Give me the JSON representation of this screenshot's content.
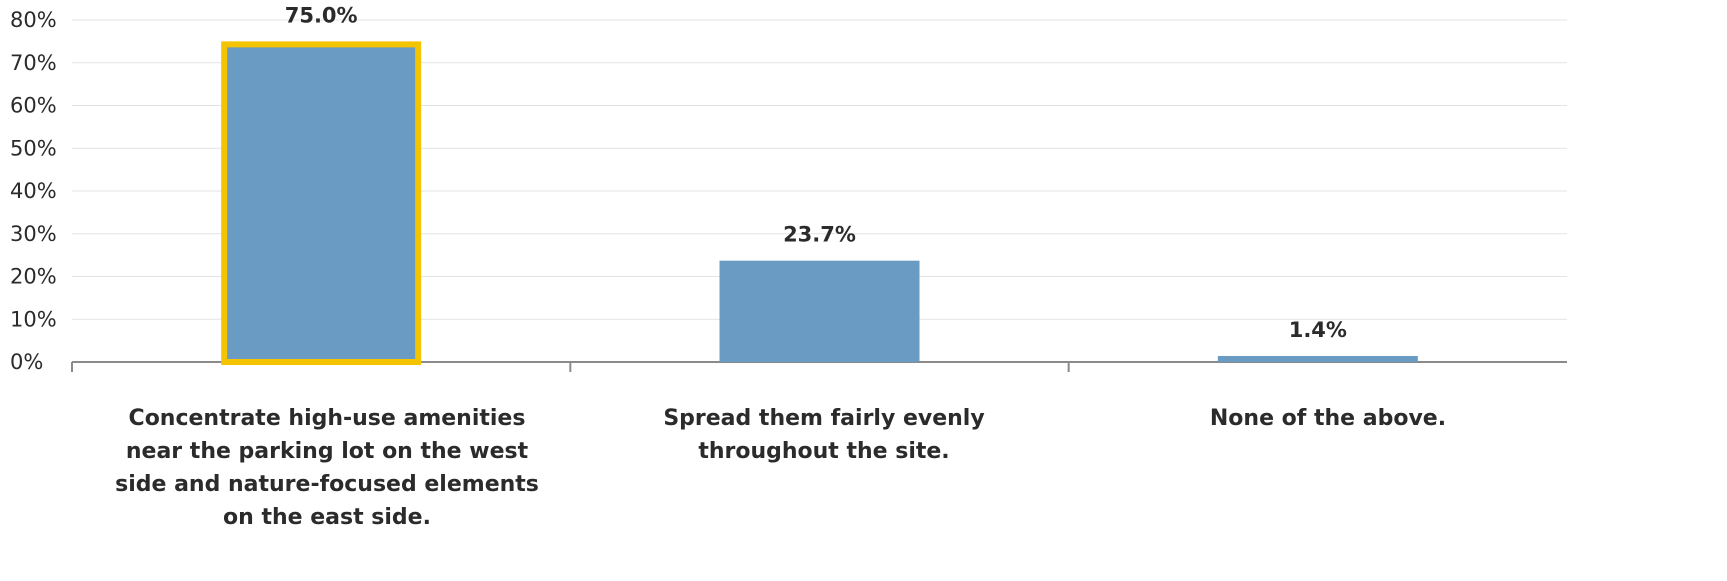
{
  "chart_data": {
    "type": "bar",
    "categories": [
      "Concentrate high-use amenities near the parking lot on the west side and nature-focused elements on the east side.",
      "Spread them fairly evenly throughout the site.",
      "None of the above."
    ],
    "values": [
      75.0,
      23.7,
      1.4
    ],
    "data_labels": [
      "75.0%",
      "23.7%",
      "1.4%"
    ],
    "y_tick_labels": [
      "0%",
      "10%",
      "20%",
      "30%",
      "40%",
      "50%",
      "60%",
      "70%",
      "80%"
    ],
    "y_ticks": [
      0,
      10,
      20,
      30,
      40,
      50,
      60,
      70,
      80
    ],
    "ylim": [
      0,
      80
    ],
    "grid": true,
    "bar_color": "#6a9bc3",
    "highlight_color": "#f5c400",
    "highlighted_index": 0,
    "grid_color": "#e3e3e3",
    "axis_color": "#8a8a8a",
    "title": "",
    "xlabel": "",
    "ylabel": ""
  }
}
